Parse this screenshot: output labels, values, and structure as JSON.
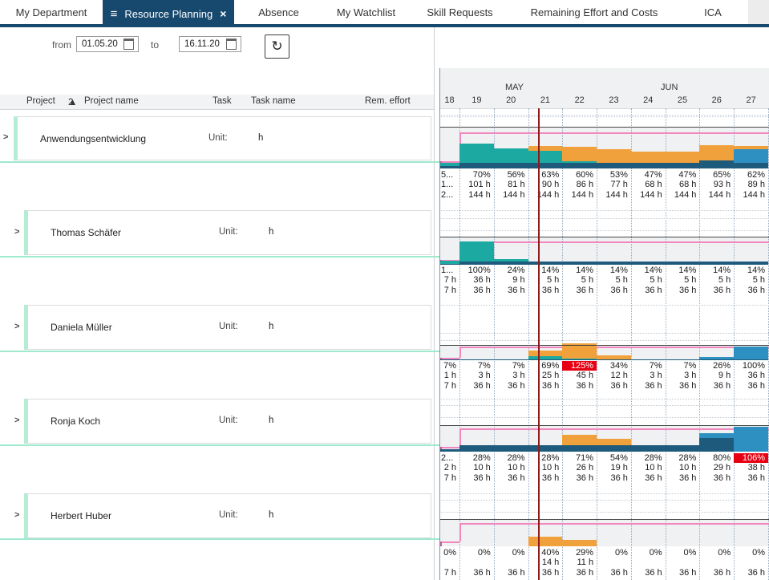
{
  "nav": {
    "tabs": [
      {
        "label": "My Department"
      },
      {
        "label": "Resource Planning",
        "active": true,
        "menu_icon": "≡",
        "close_icon": "×"
      },
      {
        "label": "Absence"
      },
      {
        "label": "My Watchlist"
      },
      {
        "label": "Skill Requests"
      },
      {
        "label": "Remaining Effort and Costs"
      },
      {
        "label": "ICA"
      }
    ]
  },
  "filter": {
    "from_label": "from",
    "from_value": "01.05.20",
    "to_label": "to",
    "to_value": "16.11.20",
    "refresh_icon": "↻"
  },
  "table_header": {
    "project": "Project",
    "sort_order": "2",
    "sort_arrow": "▲",
    "project_name": "Project name",
    "task": "Task",
    "task_name": "Task name",
    "rem_effort": "Rem. effort"
  },
  "rows": [
    {
      "name": "Anwendungsentwicklung",
      "unit_label": "Unit:",
      "unit_value": "h"
    },
    {
      "name": "Thomas Schäfer",
      "unit_label": "Unit:",
      "unit_value": "h"
    },
    {
      "name": "Daniela Müller",
      "unit_label": "Unit:",
      "unit_value": "h"
    },
    {
      "name": "Ronja Koch",
      "unit_label": "Unit:",
      "unit_value": "h"
    },
    {
      "name": "Herbert Huber",
      "unit_label": "Unit:",
      "unit_value": "h"
    }
  ],
  "colors": {
    "teal": "#1ca9a1",
    "orange": "#f1a13b",
    "navy": "#1e5a7c",
    "blue": "#2e90c0",
    "overload_bg": "#e60012",
    "capacity_line": "#f287bd",
    "today_line": "#8e1b1b"
  },
  "chart_data": {
    "type": "bar",
    "stacked": true,
    "categories": [
      "18",
      "19",
      "20",
      "21",
      "22",
      "23",
      "24",
      "25",
      "26",
      "27"
    ],
    "months": [
      {
        "label": "MAY"
      },
      {
        "label": "JUN"
      }
    ],
    "series": [
      {
        "name": "Anwendungsentwicklung",
        "pct": [
          "5...",
          "70%",
          "56%",
          "63%",
          "60%",
          "53%",
          "47%",
          "47%",
          "65%",
          "62%"
        ],
        "hours": [
          "1...",
          "101 h",
          "81 h",
          "90 h",
          "86 h",
          "77 h",
          "68 h",
          "68 h",
          "93 h",
          "89 h"
        ],
        "capacity": [
          "2...",
          "144 h",
          "144 h",
          "144 h",
          "144 h",
          "144 h",
          "144 h",
          "144 h",
          "144 h",
          "144 h"
        ],
        "overload_cols": [],
        "stacks": [
          [
            [
              "n",
              6
            ],
            [
              "t",
              10
            ]
          ],
          [
            [
              "n",
              15
            ],
            [
              "t",
              55
            ]
          ],
          [
            [
              "n",
              15
            ],
            [
              "t",
              41
            ]
          ],
          [
            [
              "n",
              15
            ],
            [
              "t",
              33
            ],
            [
              "o",
              15
            ]
          ],
          [
            [
              "n",
              15
            ],
            [
              "t",
              5
            ],
            [
              "o",
              40
            ]
          ],
          [
            [
              "n",
              15
            ],
            [
              "o",
              38
            ]
          ],
          [
            [
              "n",
              15
            ],
            [
              "o",
              32
            ]
          ],
          [
            [
              "n",
              15
            ],
            [
              "o",
              32
            ]
          ],
          [
            [
              "n",
              22
            ],
            [
              "o",
              43
            ]
          ],
          [
            [
              "n",
              15
            ],
            [
              "b",
              38
            ],
            [
              "o",
              9
            ]
          ]
        ]
      },
      {
        "name": "Thomas Schäfer",
        "pct": [
          "1...",
          "100%",
          "24%",
          "14%",
          "14%",
          "14%",
          "14%",
          "14%",
          "14%",
          "14%"
        ],
        "hours": [
          "7 h",
          "36 h",
          "9 h",
          "5 h",
          "5 h",
          "5 h",
          "5 h",
          "5 h",
          "5 h",
          "5 h"
        ],
        "capacity": [
          "7 h",
          "36 h",
          "36 h",
          "36 h",
          "36 h",
          "36 h",
          "36 h",
          "36 h",
          "36 h",
          "36 h"
        ],
        "overload_cols": [],
        "stacks": [
          [
            [
              "n",
              5
            ],
            [
              "t",
              13
            ]
          ],
          [
            [
              "n",
              14
            ],
            [
              "t",
              86
            ]
          ],
          [
            [
              "n",
              14
            ],
            [
              "t",
              10
            ]
          ],
          [
            [
              "n",
              14
            ]
          ],
          [
            [
              "n",
              14
            ]
          ],
          [
            [
              "n",
              14
            ]
          ],
          [
            [
              "n",
              14
            ]
          ],
          [
            [
              "n",
              14
            ]
          ],
          [
            [
              "n",
              14
            ]
          ],
          [
            [
              "n",
              14
            ]
          ]
        ]
      },
      {
        "name": "Daniela Müller",
        "pct": [
          "7%",
          "7%",
          "7%",
          "69%",
          "125%",
          "34%",
          "7%",
          "7%",
          "26%",
          "100%"
        ],
        "hours": [
          "1 h",
          "3 h",
          "3 h",
          "25 h",
          "45 h",
          "12 h",
          "3 h",
          "3 h",
          "9 h",
          "36 h"
        ],
        "capacity": [
          "7 h",
          "36 h",
          "36 h",
          "36 h",
          "36 h",
          "36 h",
          "36 h",
          "36 h",
          "36 h",
          "36 h"
        ],
        "overload_cols": [
          4
        ],
        "stacks": [
          [
            [
              "n",
              4
            ]
          ],
          [
            [
              "n",
              7
            ]
          ],
          [
            [
              "n",
              7
            ]
          ],
          [
            [
              "n",
              7
            ],
            [
              "t",
              25
            ],
            [
              "o",
              37
            ]
          ],
          [
            [
              "n",
              7
            ],
            [
              "t",
              5
            ],
            [
              "o",
              113
            ]
          ],
          [
            [
              "n",
              7
            ],
            [
              "o",
              27
            ]
          ],
          [
            [
              "n",
              7
            ]
          ],
          [
            [
              "n",
              7
            ]
          ],
          [
            [
              "n",
              7
            ],
            [
              "b",
              19
            ]
          ],
          [
            [
              "n",
              7
            ],
            [
              "b",
              93
            ]
          ]
        ]
      },
      {
        "name": "Ronja Koch",
        "pct": [
          "2...",
          "28%",
          "28%",
          "28%",
          "71%",
          "54%",
          "28%",
          "28%",
          "80%",
          "106%"
        ],
        "hours": [
          "2 h",
          "10 h",
          "10 h",
          "10 h",
          "26 h",
          "19 h",
          "10 h",
          "10 h",
          "29 h",
          "38 h"
        ],
        "capacity": [
          "7 h",
          "36 h",
          "36 h",
          "36 h",
          "36 h",
          "36 h",
          "36 h",
          "36 h",
          "36 h",
          "36 h"
        ],
        "overload_cols": [
          9
        ],
        "stacks": [
          [
            [
              "n",
              10
            ]
          ],
          [
            [
              "n",
              28
            ]
          ],
          [
            [
              "n",
              28
            ]
          ],
          [
            [
              "n",
              28
            ]
          ],
          [
            [
              "n",
              28
            ],
            [
              "o",
              43
            ]
          ],
          [
            [
              "n",
              28
            ],
            [
              "o",
              26
            ]
          ],
          [
            [
              "n",
              28
            ]
          ],
          [
            [
              "n",
              28
            ]
          ],
          [
            [
              "n",
              60
            ],
            [
              "b",
              20
            ]
          ],
          [
            [
              "b",
              106
            ]
          ]
        ]
      },
      {
        "name": "Herbert Huber",
        "pct": [
          "0%",
          "0%",
          "0%",
          "40%",
          "29%",
          "0%",
          "0%",
          "0%",
          "0%",
          "0%"
        ],
        "hours": [
          "",
          "",
          "",
          "14 h",
          "11 h",
          "",
          "",
          "",
          "",
          ""
        ],
        "capacity": [
          "7 h",
          "36 h",
          "36 h",
          "36 h",
          "36 h",
          "36 h",
          "36 h",
          "36 h",
          "36 h",
          "36 h"
        ],
        "overload_cols": [],
        "stacks": [
          [],
          [],
          [],
          [
            [
              "o",
              40
            ]
          ],
          [
            [
              "o",
              29
            ]
          ],
          [],
          [],
          [],
          [],
          []
        ]
      }
    ]
  }
}
